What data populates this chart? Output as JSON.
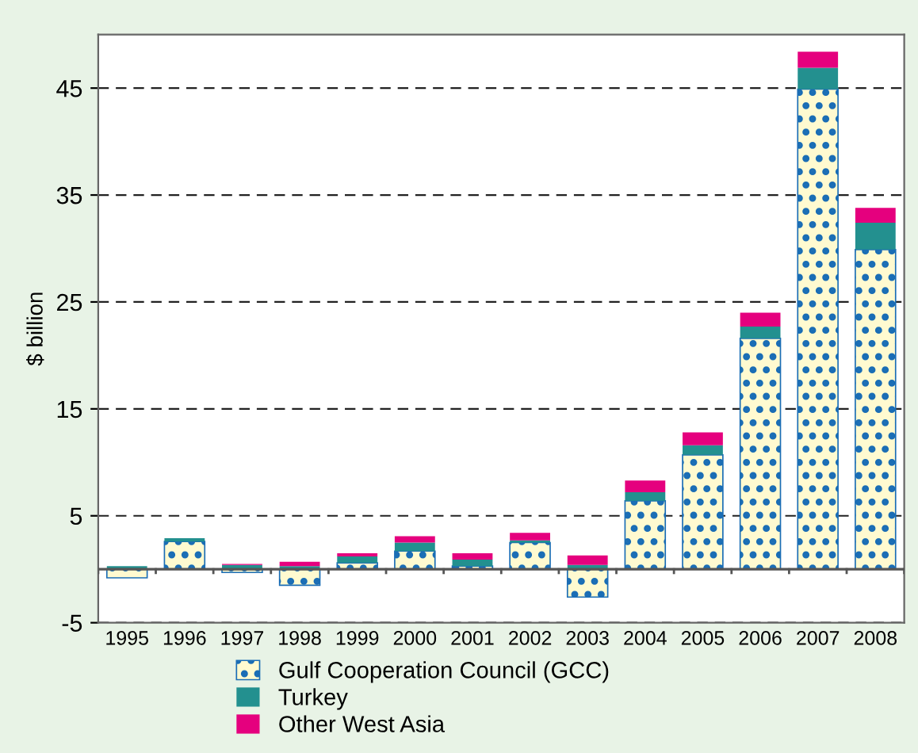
{
  "chart_data": {
    "type": "bar",
    "stacked": true,
    "ylabel": "$ billion",
    "categories": [
      "1995",
      "1996",
      "1997",
      "1998",
      "1999",
      "2000",
      "2001",
      "2002",
      "2003",
      "2004",
      "2005",
      "2006",
      "2007",
      "2008"
    ],
    "series": [
      {
        "name": "Gulf Cooperation Council (GCC)",
        "color": "#1a6db5",
        "values": [
          -0.8,
          2.6,
          -0.3,
          -1.5,
          0.6,
          1.7,
          0.3,
          2.5,
          -2.6,
          6.4,
          10.7,
          21.6,
          44.9,
          29.9
        ]
      },
      {
        "name": "Turkey",
        "color": "#23908f",
        "values": [
          0.3,
          0.3,
          0.4,
          0.3,
          0.6,
          0.8,
          0.6,
          0.2,
          0.4,
          0.8,
          0.9,
          1.1,
          2,
          2.5
        ]
      },
      {
        "name": "Other West Asia",
        "color": "#e5007e",
        "values": [
          0,
          0,
          0.1,
          0.4,
          0.3,
          0.6,
          0.6,
          0.7,
          0.9,
          1.1,
          1.2,
          1.3,
          1.5,
          1.4
        ]
      }
    ],
    "ylim": [
      -5,
      50
    ],
    "yticks": [
      -5,
      5,
      15,
      25,
      35,
      45
    ],
    "grid": "y",
    "legend": "bottom"
  }
}
